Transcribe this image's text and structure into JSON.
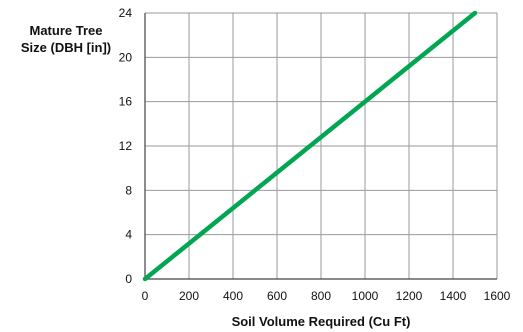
{
  "chart_data": {
    "type": "line",
    "ylabel_line1": "Mature Tree",
    "ylabel_line2": "Size (DBH [in])",
    "xlabel": "Soil Volume Required (Cu Ft)",
    "xlim": [
      0,
      1600
    ],
    "ylim": [
      0,
      24
    ],
    "x_ticks": [
      "0",
      "200",
      "400",
      "600",
      "800",
      "1000",
      "1200",
      "1400",
      "1600"
    ],
    "y_ticks": [
      "0",
      "4",
      "8",
      "12",
      "16",
      "20",
      "24"
    ],
    "grid": true,
    "series": [
      {
        "color": "#00a651",
        "x": [
          0,
          1500
        ],
        "y": [
          0,
          24
        ]
      }
    ]
  }
}
